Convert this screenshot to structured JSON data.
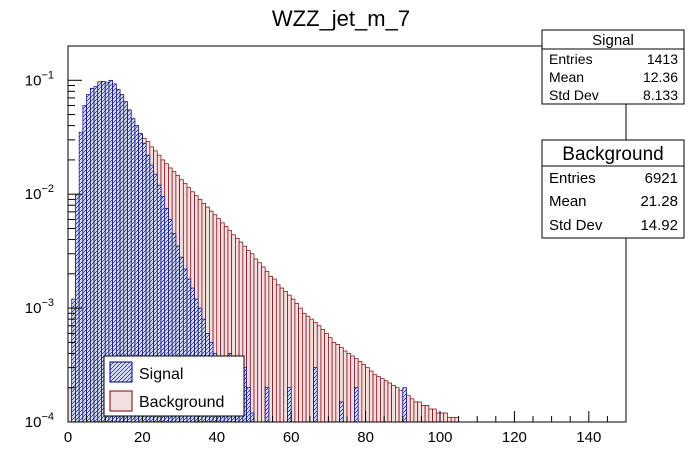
{
  "chart_data": {
    "type": "histogram",
    "title": "WZZ_jet_m_7",
    "xlabel": "",
    "ylabel": "",
    "xlim": [
      0,
      150
    ],
    "ylim": [
      0.0001,
      0.2
    ],
    "y_scale": "log",
    "bin_width": 1,
    "x_ticks": [
      0,
      20,
      40,
      60,
      80,
      100,
      120,
      140
    ],
    "y_ticks": [
      {
        "value": 0.0001,
        "base": "10",
        "exp": "−4"
      },
      {
        "value": 0.001,
        "base": "10",
        "exp": "−3"
      },
      {
        "value": 0.01,
        "base": "10",
        "exp": "−2"
      },
      {
        "value": 0.1,
        "base": "10",
        "exp": "−1"
      }
    ],
    "series": [
      {
        "name": "Signal",
        "color": "#00007f",
        "fill": "#00007f",
        "pattern": "hatched",
        "stats": {
          "title": "Signal",
          "entries": "1413",
          "mean": "12.36",
          "std_dev": "8.133"
        },
        "bin_start": 0,
        "values": [
          0.0001,
          0.0012,
          0.01,
          0.035,
          0.06,
          0.075,
          0.085,
          0.088,
          0.097,
          0.098,
          0.095,
          0.1,
          0.093,
          0.083,
          0.075,
          0.065,
          0.055,
          0.046,
          0.04,
          0.034,
          0.028,
          0.022,
          0.018,
          0.015,
          0.012,
          0.0095,
          0.0075,
          0.006,
          0.0045,
          0.0035,
          0.0028,
          0.0022,
          0.0018,
          0.0015,
          0.0012,
          0.001,
          0.0008,
          0.0006,
          0.0005,
          0.0004,
          0.0003,
          0.00025,
          0.0002,
          0.0004,
          0.0003,
          0.0002,
          0.00015,
          0.0003,
          0.0002,
          0.00012,
          0,
          0,
          0,
          0.0002,
          0,
          0,
          0,
          0,
          0,
          0.0002,
          0,
          0,
          0,
          0,
          0,
          0,
          0.0003,
          0,
          0,
          0,
          0,
          0,
          0,
          0.00015,
          0,
          0,
          0,
          0.0002,
          0,
          0,
          0,
          0,
          0,
          0,
          0,
          0,
          0,
          0,
          0,
          0,
          0.0002,
          0,
          0,
          0,
          0,
          0,
          0,
          0,
          0,
          0,
          0,
          0,
          0,
          0,
          0,
          0,
          0,
          0,
          0,
          0,
          0,
          0,
          0,
          0,
          0,
          0,
          0,
          0,
          0,
          0,
          0,
          0,
          0,
          0,
          0,
          0,
          0,
          0,
          0,
          0,
          0,
          0,
          0,
          0,
          0,
          0,
          0,
          0,
          0,
          0,
          0,
          0,
          0,
          0,
          0,
          0,
          0,
          0,
          0,
          0
        ]
      },
      {
        "name": "Background",
        "color": "#7f0000",
        "fill": "#f2dfe1",
        "pattern": "solid",
        "stats": {
          "title": "Background",
          "entries": "6921",
          "mean": "21.28",
          "std_dev": "14.92"
        },
        "bin_start": 0,
        "values": [
          0.0002,
          0.0008,
          0.003,
          0.008,
          0.016,
          0.025,
          0.033,
          0.04,
          0.044,
          0.048,
          0.05,
          0.052,
          0.05,
          0.048,
          0.046,
          0.044,
          0.042,
          0.04,
          0.037,
          0.034,
          0.031,
          0.029,
          0.026,
          0.024,
          0.022,
          0.02,
          0.0185,
          0.017,
          0.0158,
          0.0146,
          0.0134,
          0.0124,
          0.0114,
          0.0105,
          0.0097,
          0.009,
          0.0083,
          0.0077,
          0.0071,
          0.0066,
          0.0061,
          0.0056,
          0.0052,
          0.0048,
          0.0044,
          0.0041,
          0.0038,
          0.0035,
          0.0032,
          0.003,
          0.0027,
          0.0025,
          0.0023,
          0.0021,
          0.0019,
          0.0018,
          0.0016,
          0.0015,
          0.0014,
          0.0013,
          0.0012,
          0.0011,
          0.001,
          0.0009,
          0.00085,
          0.0008,
          0.00075,
          0.0007,
          0.00065,
          0.0006,
          0.00055,
          0.0005,
          0.00048,
          0.00045,
          0.00042,
          0.0004,
          0.00038,
          0.00036,
          0.00034,
          0.00032,
          0.0003,
          0.00028,
          0.00026,
          0.00025,
          0.00024,
          0.00023,
          0.00022,
          0.00021,
          0.0002,
          0.00019,
          0.00018,
          0.00017,
          0.00016,
          0.00015,
          0.00015,
          0.00014,
          0.00014,
          0.00013,
          0.00013,
          0.00012,
          0.00012,
          0.00012,
          0.00011,
          0.00011,
          0.00011,
          0.0001,
          0.0001,
          0.0001,
          0,
          0,
          0,
          0,
          0,
          0,
          0,
          0,
          0,
          0,
          0,
          0,
          0,
          0,
          0,
          0,
          0,
          0,
          0,
          0,
          0,
          0,
          0,
          0,
          0,
          0,
          0,
          0,
          0,
          0,
          0,
          0,
          0,
          0,
          0,
          0,
          0,
          0,
          0,
          0,
          0,
          0
        ]
      }
    ],
    "legend": {
      "placement": "bottom-left",
      "entries": [
        {
          "label": "Signal",
          "swatch_fill": "#d6dcee",
          "swatch_stroke": "#00007f"
        },
        {
          "label": "Background",
          "swatch_fill": "#f2dfe1",
          "swatch_stroke": "#7f0000"
        }
      ]
    },
    "stats_labels": {
      "entries": "Entries",
      "mean": "Mean",
      "std_dev": "Std Dev"
    }
  }
}
